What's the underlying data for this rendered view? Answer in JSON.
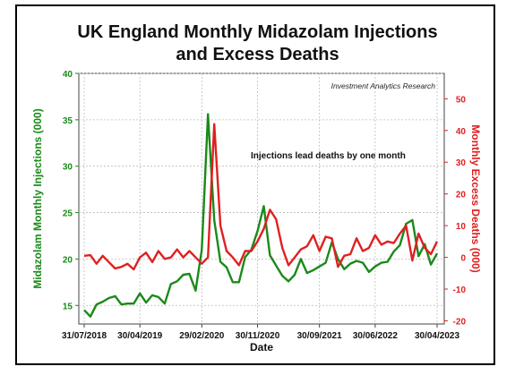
{
  "chart_data": {
    "type": "line",
    "title": "UK England Monthly Midazolam Injections\nand Excess Deaths",
    "title_line1": "UK England Monthly Midazolam Injections",
    "title_line2": "and Excess Deaths",
    "xlabel": "Date",
    "ylabel_left": "Midazolam Monthly Injections (000)",
    "ylabel_right": "Monthly Excess Deaths (000)",
    "source": "Investment Analytics Research",
    "annotation": "Injections lead deaths by one month",
    "x_tick_labels": [
      "31/07/2018",
      "30/04/2019",
      "29/02/2020",
      "30/11/2020",
      "30/09/2021",
      "30/06/2022",
      "30/04/2023"
    ],
    "x_tick_month_index": [
      0,
      9,
      19,
      28,
      38,
      47,
      57
    ],
    "ylim_left": [
      13,
      40
    ],
    "yticks_left": [
      15,
      20,
      25,
      30,
      35,
      40
    ],
    "ylim_right": [
      -21,
      58
    ],
    "yticks_right": [
      -20,
      -10,
      0,
      10,
      20,
      30,
      40,
      50
    ],
    "grid": true,
    "colors": {
      "injections": "#1a8a1a",
      "deaths": "#e02020"
    },
    "series": [
      {
        "name": "Midazolam Monthly Injections",
        "axis": "left",
        "color": "#1a8a1a",
        "month_start": 0,
        "values": [
          14.5,
          13.8,
          15.1,
          15.4,
          15.8,
          16.0,
          15.1,
          15.2,
          15.2,
          16.3,
          15.3,
          16.1,
          15.9,
          15.2,
          17.3,
          17.6,
          18.3,
          18.4,
          16.6,
          21.0,
          35.6,
          24.2,
          19.7,
          19.1,
          17.5,
          17.5,
          20.2,
          21.0,
          23.0,
          25.7,
          20.4,
          19.3,
          18.2,
          17.6,
          18.3,
          20.0,
          18.5,
          18.8,
          19.2,
          19.6,
          21.8,
          20.0,
          18.9,
          19.5,
          19.8,
          19.6,
          18.6,
          19.2,
          19.6,
          19.7,
          20.8,
          21.5,
          23.8,
          24.2,
          20.3,
          21.6,
          19.4,
          20.6
        ]
      },
      {
        "name": "Monthly Excess Deaths",
        "axis": "right",
        "color": "#e02020",
        "month_start": 0,
        "values": [
          0.5,
          0.7,
          -2.0,
          0.5,
          -1.5,
          -3.5,
          -3.0,
          -2.0,
          -3.8,
          0.0,
          1.5,
          -1.5,
          2.0,
          -0.5,
          0.0,
          2.5,
          0.0,
          2.0,
          0.0,
          -2.0,
          0.0,
          42.0,
          10.0,
          2.0,
          0.0,
          -2.5,
          2.0,
          2.0,
          5.0,
          9.0,
          15.0,
          12.0,
          3.0,
          -2.5,
          0.0,
          2.5,
          3.5,
          7.0,
          2.0,
          6.5,
          6.0,
          -3.0,
          0.5,
          1.0,
          6.0,
          2.0,
          3.0,
          7.0,
          4.0,
          5.0,
          4.5,
          7.5,
          10.0,
          -1.0,
          7.5,
          3.0,
          1.0,
          5.0
        ]
      }
    ]
  }
}
